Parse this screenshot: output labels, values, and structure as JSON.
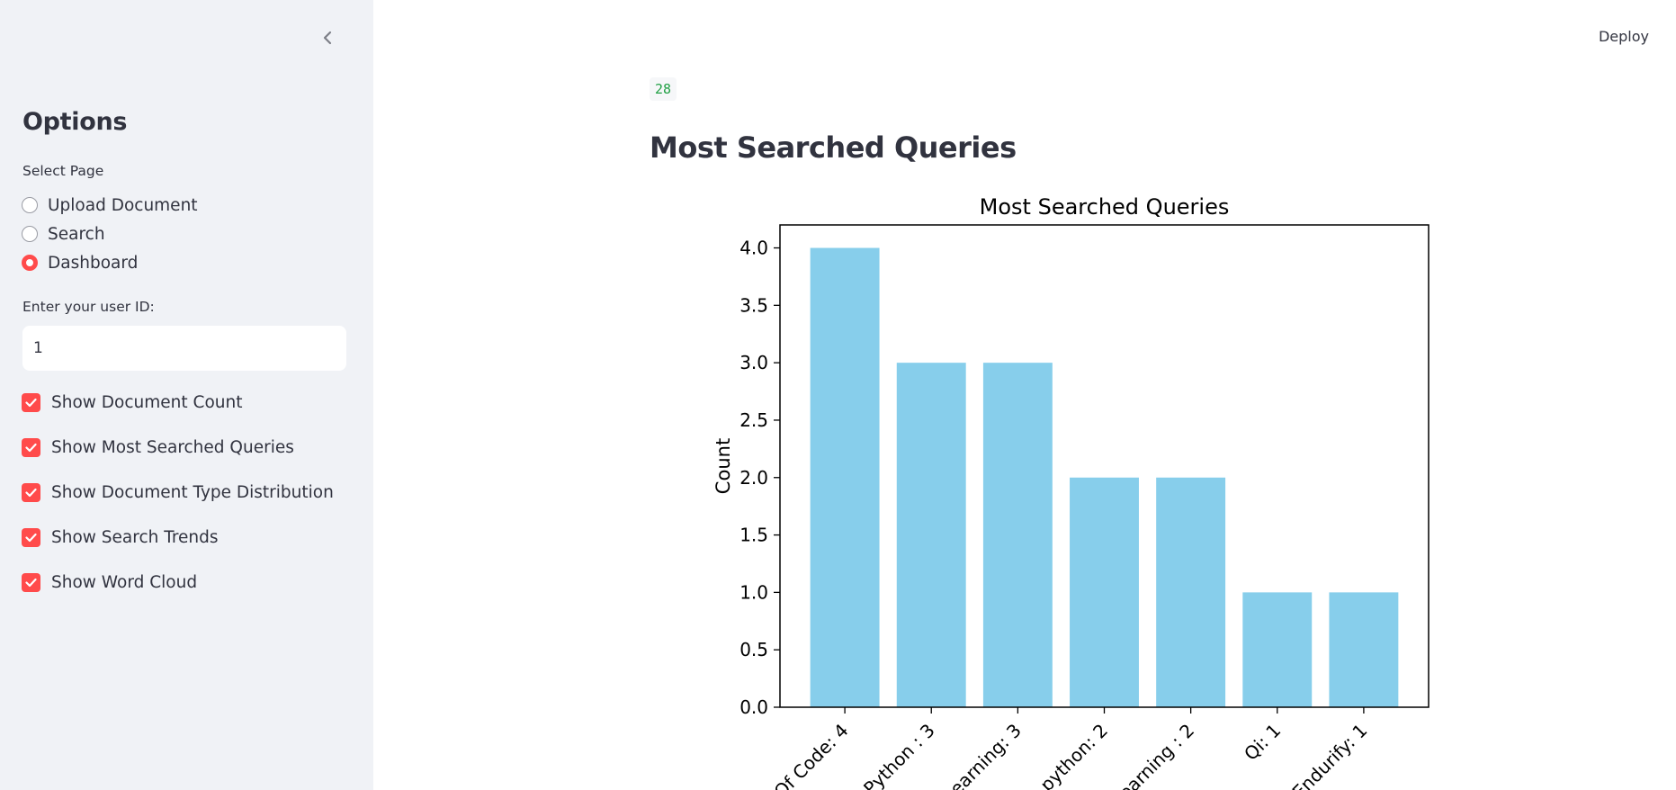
{
  "header": {
    "deploy_label": "Deploy"
  },
  "sidebar": {
    "title": "Options",
    "select_page_label": "Select Page",
    "pages": [
      {
        "label": "Upload Document",
        "selected": false
      },
      {
        "label": "Search",
        "selected": false
      },
      {
        "label": "Dashboard",
        "selected": true
      }
    ],
    "user_id_label": "Enter your user ID:",
    "user_id_value": "1",
    "checkboxes": [
      {
        "label": "Show Document Count",
        "checked": true
      },
      {
        "label": "Show Most Searched Queries",
        "checked": true
      },
      {
        "label": "Show Document Type Distribution",
        "checked": true
      },
      {
        "label": "Show Search Trends",
        "checked": true
      },
      {
        "label": "Show Word Cloud",
        "checked": true
      }
    ]
  },
  "main": {
    "metric_value": "28",
    "section_title": "Most Searched Queries"
  },
  "colors": {
    "accent": "#ff4b4b",
    "bar": "#87ceeb",
    "metric": "#21a045",
    "sidebar_bg": "#f0f2f6"
  },
  "chart_data": {
    "type": "bar",
    "title": "Most Searched Queries",
    "xlabel": "",
    "ylabel": "Count",
    "categories": [
      "Of Code: 4",
      "Python : 3",
      "earning: 3",
      "python: 2",
      "earning : 2",
      "Qi: 1",
      "Endurify: 1"
    ],
    "values": [
      4,
      3,
      3,
      2,
      2,
      1,
      1
    ],
    "ylim": [
      0,
      4.2
    ],
    "yticks": [
      "0.0",
      "0.5",
      "1.0",
      "1.5",
      "2.0",
      "2.5",
      "3.0",
      "3.5",
      "4.0"
    ],
    "grid": false,
    "legend": "none"
  }
}
